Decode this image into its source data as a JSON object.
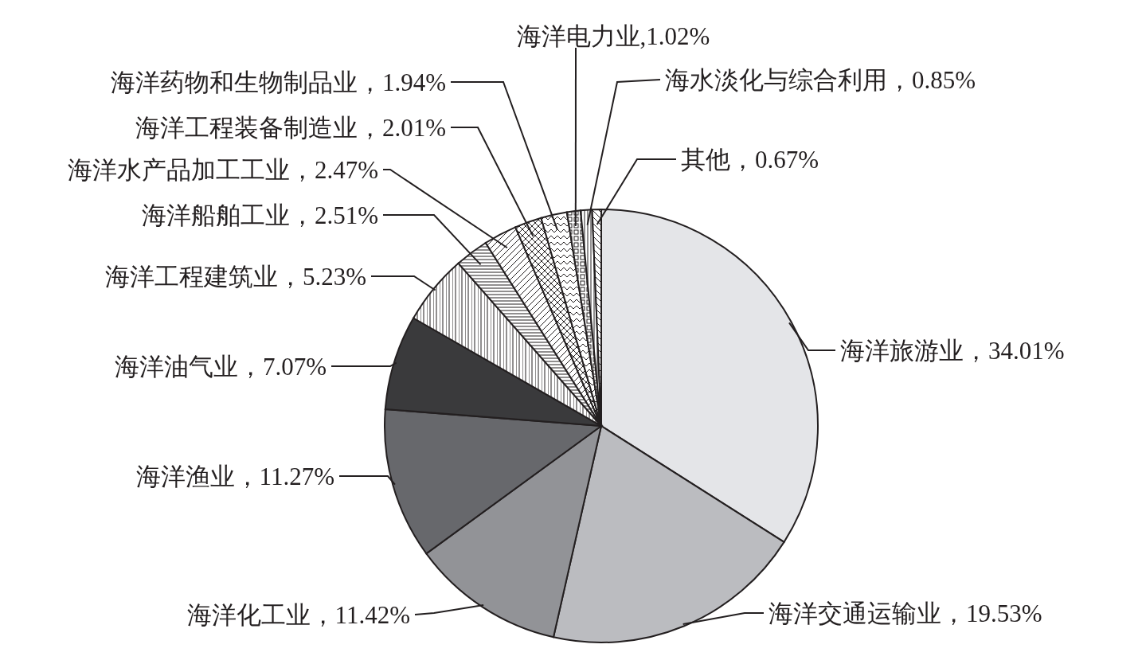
{
  "chart_data": {
    "type": "pie",
    "categories": [
      "海洋旅游业",
      "海洋交通运输业",
      "海洋化工业",
      "海洋渔业",
      "海洋油气业",
      "海洋工程建筑业",
      "海洋船舶工业",
      "海洋水产品加工工业",
      "海洋工程装备制造业",
      "海洋药物和生物制品业",
      "海洋电力业",
      "海水淡化与综合利用",
      "其他"
    ],
    "values": [
      34.01,
      19.53,
      11.42,
      11.27,
      7.07,
      5.23,
      2.51,
      2.47,
      2.01,
      1.94,
      1.02,
      0.85,
      0.67
    ],
    "value_labels": [
      "，34.01%",
      "，19.53%",
      "，11.42%",
      "，11.27%",
      "，7.07%",
      "，5.23%",
      "，2.51%",
      "，2.47%",
      "，2.01%",
      "，1.94%",
      ",1.02%",
      "，0.85%",
      "，0.67%"
    ],
    "colors": [
      "#e4e5e8",
      "#bbbcc0",
      "#929397",
      "#67686c",
      "#3a3a3c",
      "#231f20",
      "#231f20",
      "#231f20",
      "#231f20",
      "#231f20",
      "#231f20",
      "#231f20",
      "#231f20"
    ]
  }
}
